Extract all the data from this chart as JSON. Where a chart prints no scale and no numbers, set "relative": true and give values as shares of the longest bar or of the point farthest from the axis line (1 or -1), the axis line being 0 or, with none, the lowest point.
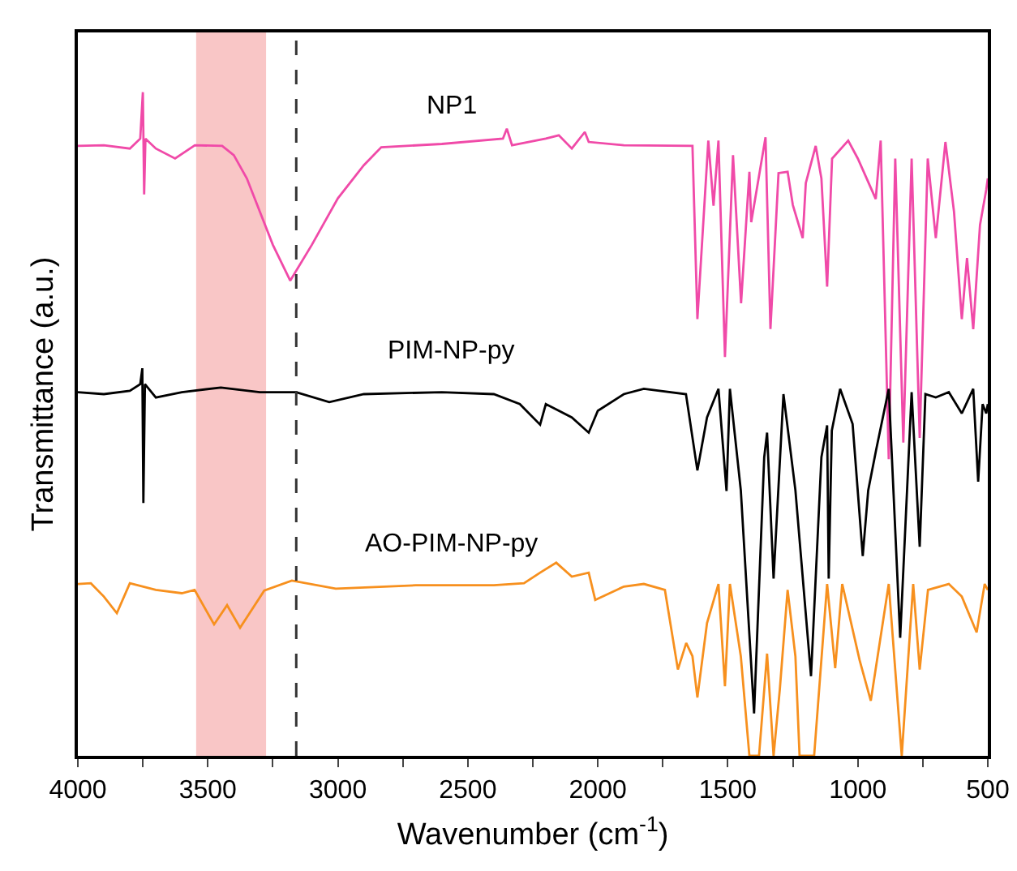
{
  "chart_data": {
    "type": "line",
    "relative": true,
    "xlabel": "Wavenumber (cm$^{-1}$)",
    "ylabel": "Transmittance (a.u.)",
    "xlim": [
      4000,
      500
    ],
    "xticks": [
      4000,
      {
        "value": 3750,
        "label": null
      },
      3500,
      {
        "value": 3250,
        "label": null
      },
      3000,
      {
        "value": 2750,
        "label": null
      },
      2500,
      {
        "value": 2250,
        "label": null
      },
      2000,
      {
        "value": 1750,
        "label": null
      },
      1500,
      {
        "value": 1250,
        "label": null
      },
      1000,
      {
        "value": 750,
        "label": null
      },
      500
    ],
    "grid": false,
    "legend": false,
    "tick_labels": "x",
    "line_style": "solid",
    "marker": "none",
    "bands": [
      {
        "axis": "x",
        "from": 3545,
        "to": 3276,
        "color": "#f9c6c6"
      }
    ],
    "ref_lines": [
      {
        "axis": "x",
        "value": 3160,
        "color": "#333333",
        "line_style": "dashed"
      }
    ],
    "series": [
      {
        "name": "NP1",
        "color": "#f04aa8",
        "x": [
          4000,
          3900,
          3800,
          3760,
          3750,
          3745,
          3740,
          3700,
          3626,
          3550,
          3445,
          3400,
          3350,
          3300,
          3250,
          3183,
          3100,
          3000,
          2900,
          2833,
          2600,
          2365,
          2350,
          2330,
          2200,
          2150,
          2100,
          2050,
          2035,
          1900,
          1636,
          1617,
          1575,
          1555,
          1536,
          1511,
          1480,
          1449,
          1417,
          1410,
          1355,
          1336,
          1305,
          1270,
          1250,
          1212,
          1200,
          1162,
          1140,
          1118,
          1099,
          1037,
          1000,
          931,
          912,
          881,
          856,
          825,
          793,
          762,
          731,
          700,
          663,
          630,
          600,
          580,
          556,
          530,
          506,
          500
        ],
        "values": [
          0.919,
          0.92,
          0.915,
          0.93,
          1.0,
          0.846,
          0.93,
          0.915,
          0.9,
          0.92,
          0.919,
          0.905,
          0.87,
          0.82,
          0.77,
          0.716,
          0.77,
          0.84,
          0.89,
          0.917,
          0.922,
          0.93,
          0.945,
          0.92,
          0.93,
          0.935,
          0.915,
          0.94,
          0.925,
          0.92,
          0.919,
          0.658,
          0.927,
          0.829,
          0.927,
          0.601,
          0.905,
          0.682,
          0.88,
          0.804,
          0.932,
          0.643,
          0.878,
          0.88,
          0.83,
          0.78,
          0.863,
          0.919,
          0.87,
          0.707,
          0.9,
          0.927,
          0.9,
          0.839,
          0.927,
          0.447,
          0.9,
          0.472,
          0.9,
          0.479,
          0.9,
          0.78,
          0.925,
          0.82,
          0.658,
          0.75,
          0.643,
          0.8,
          0.853,
          0.87
        ]
      },
      {
        "name": "PIM-NP-py",
        "color": "#000000",
        "x": [
          4000,
          3900,
          3800,
          3760,
          3752,
          3748,
          3742,
          3700,
          3600,
          3450,
          3300,
          3160,
          3033,
          2900,
          2600,
          2400,
          2300,
          2222,
          2200,
          2100,
          2035,
          2000,
          1900,
          1823,
          1661,
          1617,
          1580,
          1536,
          1505,
          1492,
          1450,
          1399,
          1360,
          1349,
          1324,
          1286,
          1240,
          1180,
          1140,
          1118,
          1112,
          1100,
          1068,
          1020,
          981,
          960,
          930,
          881,
          837,
          793,
          762,
          740,
          700,
          650,
          600,
          556,
          537,
          520,
          506,
          500
        ],
        "values": [
          0.548,
          0.545,
          0.55,
          0.56,
          0.584,
          0.381,
          0.56,
          0.54,
          0.548,
          0.555,
          0.548,
          0.548,
          0.533,
          0.545,
          0.548,
          0.545,
          0.53,
          0.499,
          0.53,
          0.51,
          0.487,
          0.52,
          0.545,
          0.553,
          0.545,
          0.43,
          0.51,
          0.553,
          0.399,
          0.553,
          0.4,
          0.064,
          0.45,
          0.487,
          0.267,
          0.545,
          0.4,
          0.12,
          0.45,
          0.498,
          0.267,
          0.49,
          0.553,
          0.5,
          0.301,
          0.4,
          0.46,
          0.553,
          0.178,
          0.548,
          0.315,
          0.545,
          0.54,
          0.548,
          0.516,
          0.553,
          0.413,
          0.53,
          0.516,
          0.53
        ]
      },
      {
        "name": "AO-PIM-NP-py",
        "color": "#f7901e",
        "x": [
          4000,
          3950,
          3900,
          3850,
          3800,
          3700,
          3600,
          3551,
          3476,
          3426,
          3376,
          3283,
          3177,
          3008,
          2700,
          2400,
          2284,
          2222,
          2160,
          2100,
          2035,
          2010,
          1900,
          1823,
          1742,
          1692,
          1660,
          1636,
          1617,
          1580,
          1536,
          1511,
          1492,
          1450,
          1417,
          1380,
          1349,
          1324,
          1300,
          1270,
          1240,
          1224,
          1168,
          1118,
          1087,
          1060,
          993,
          950,
          881,
          831,
          787,
          762,
          730,
          650,
          600,
          543,
          512,
          500
        ],
        "values": [
          0.259,
          0.26,
          0.24,
          0.215,
          0.26,
          0.25,
          0.245,
          0.25,
          0.198,
          0.227,
          0.193,
          0.249,
          0.264,
          0.252,
          0.257,
          0.257,
          0.26,
          0.276,
          0.291,
          0.27,
          0.276,
          0.235,
          0.255,
          0.259,
          0.25,
          0.13,
          0.17,
          0.15,
          0.088,
          0.2,
          0.259,
          0.105,
          0.259,
          0.15,
          0,
          0,
          0.154,
          0,
          0.1,
          0.25,
          0.15,
          0,
          0,
          0.259,
          0.132,
          0.259,
          0.144,
          0.083,
          0.259,
          0,
          0.259,
          0.13,
          0.25,
          0.259,
          0.24,
          0.186,
          0.259,
          0.25
        ]
      }
    ]
  }
}
